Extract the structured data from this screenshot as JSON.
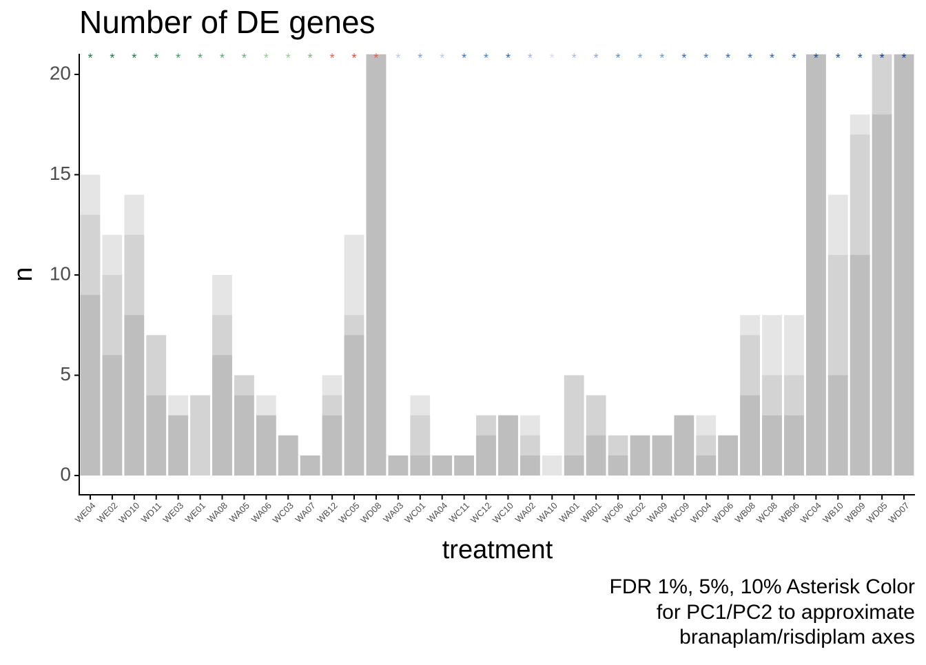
{
  "chart_data": {
    "type": "bar",
    "title": "Number of DE genes",
    "x_label": "treatment",
    "y_label": "n",
    "caption": [
      "FDR 1%, 5%, 10% Asterisk Color",
      "for PC1/PC2 to approximate",
      "branaplam/risdiplam axes"
    ],
    "asterisk": "*",
    "categories": [
      "WE04",
      "WE02",
      "WD10",
      "WD11",
      "WE03",
      "WE01",
      "WA08",
      "WA05",
      "WA06",
      "WC03",
      "WA07",
      "WB12",
      "WC05",
      "WD08",
      "WA03",
      "WC01",
      "WA04",
      "WC11",
      "WC12",
      "WC10",
      "WA02",
      "WA10",
      "WA01",
      "WB01",
      "WC06",
      "WC02",
      "WA09",
      "WC09",
      "WD04",
      "WD06",
      "WB08",
      "WC08",
      "WB06",
      "WC04",
      "WB10",
      "WB09",
      "WD05",
      "WD07"
    ],
    "series": [
      {
        "name": "FDR 10%",
        "color": "#e5e5e5",
        "values": [
          15,
          12,
          14,
          7,
          4,
          4,
          10,
          5,
          4,
          2,
          1,
          5,
          12,
          21,
          1,
          4,
          1,
          1,
          3,
          3,
          3,
          1,
          5,
          4,
          2,
          2,
          2,
          3,
          3,
          2,
          8,
          8,
          8,
          21,
          14,
          18,
          21,
          21
        ]
      },
      {
        "name": "FDR 5%",
        "color": "#d3d3d3",
        "values": [
          13,
          10,
          12,
          7,
          3,
          4,
          8,
          5,
          3,
          2,
          1,
          4,
          8,
          21,
          1,
          3,
          1,
          1,
          3,
          3,
          2,
          0,
          5,
          4,
          2,
          2,
          2,
          3,
          2,
          2,
          7,
          5,
          5,
          21,
          11,
          17,
          21,
          21
        ]
      },
      {
        "name": "FDR 1%",
        "color": "#bebebe",
        "values": [
          9,
          6,
          8,
          4,
          3,
          0,
          6,
          4,
          3,
          2,
          1,
          3,
          7,
          21,
          1,
          1,
          1,
          1,
          2,
          3,
          1,
          0,
          1,
          2,
          1,
          2,
          2,
          3,
          1,
          2,
          4,
          3,
          3,
          21,
          5,
          11,
          18,
          21
        ]
      }
    ],
    "asterisk_colors": [
      "#1b7a3e",
      "#1b7a3e",
      "#1b7a3e",
      "#2e8b57",
      "#3a9a5a",
      "#4aa065",
      "#5aa86e",
      "#6aaa78",
      "#9acb95",
      "#9acb95",
      "#7fb57f",
      "#e8604c",
      "#e04a3a",
      "#e8604c",
      "#b9c9e6",
      "#7a9fd0",
      "#b9c9e6",
      "#3b72b5",
      "#4a80c0",
      "#2f66a8",
      "#9ab4dd",
      "#d5dff0",
      "#a6bde2",
      "#8aa9d6",
      "#5a8bc6",
      "#7a9fd0",
      "#6a95cb",
      "#2f66a8",
      "#3b72b5",
      "#2f66a8",
      "#2f66a8",
      "#2a62a5",
      "#245a9e",
      "#1d4f91",
      "#1d4f91",
      "#1d4f91",
      "#0d3f85",
      "#0d3f85"
    ],
    "asterisk_y": 21,
    "ylim": [
      -0.96,
      21.03
    ],
    "yticks": [
      0,
      5,
      10,
      15,
      20
    ]
  }
}
